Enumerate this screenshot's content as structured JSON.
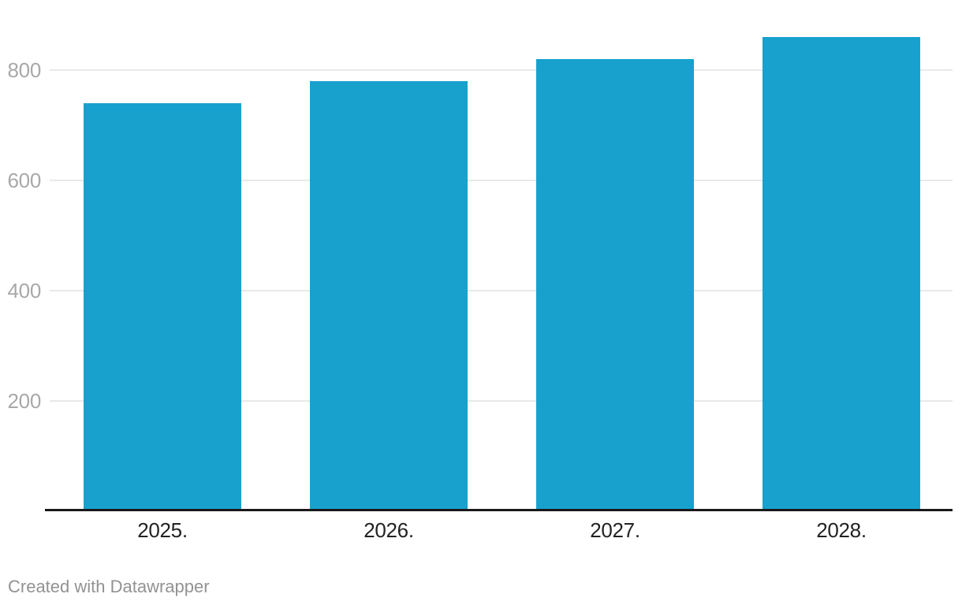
{
  "chart_data": {
    "type": "bar",
    "title": "",
    "xlabel": "",
    "ylabel": "",
    "categories": [
      "2025.",
      "2026.",
      "2027.",
      "2028."
    ],
    "values": [
      740,
      780,
      820,
      860
    ],
    "yticks": [
      200,
      400,
      600,
      800
    ],
    "ylim": [
      0,
      900
    ],
    "grid": "horizontal",
    "legend": "none",
    "bar_color": "#18a1cd"
  },
  "colors": {
    "bar": "#18a1cd",
    "gridline": "#e9e9e9",
    "axis_line": "#19191b",
    "x_tick_label": "#222222",
    "y_tick_label": "#a8a8a8",
    "attribution": "#929292",
    "background": "#ffffff"
  },
  "footer": {
    "attribution": "Created with Datawrapper"
  }
}
